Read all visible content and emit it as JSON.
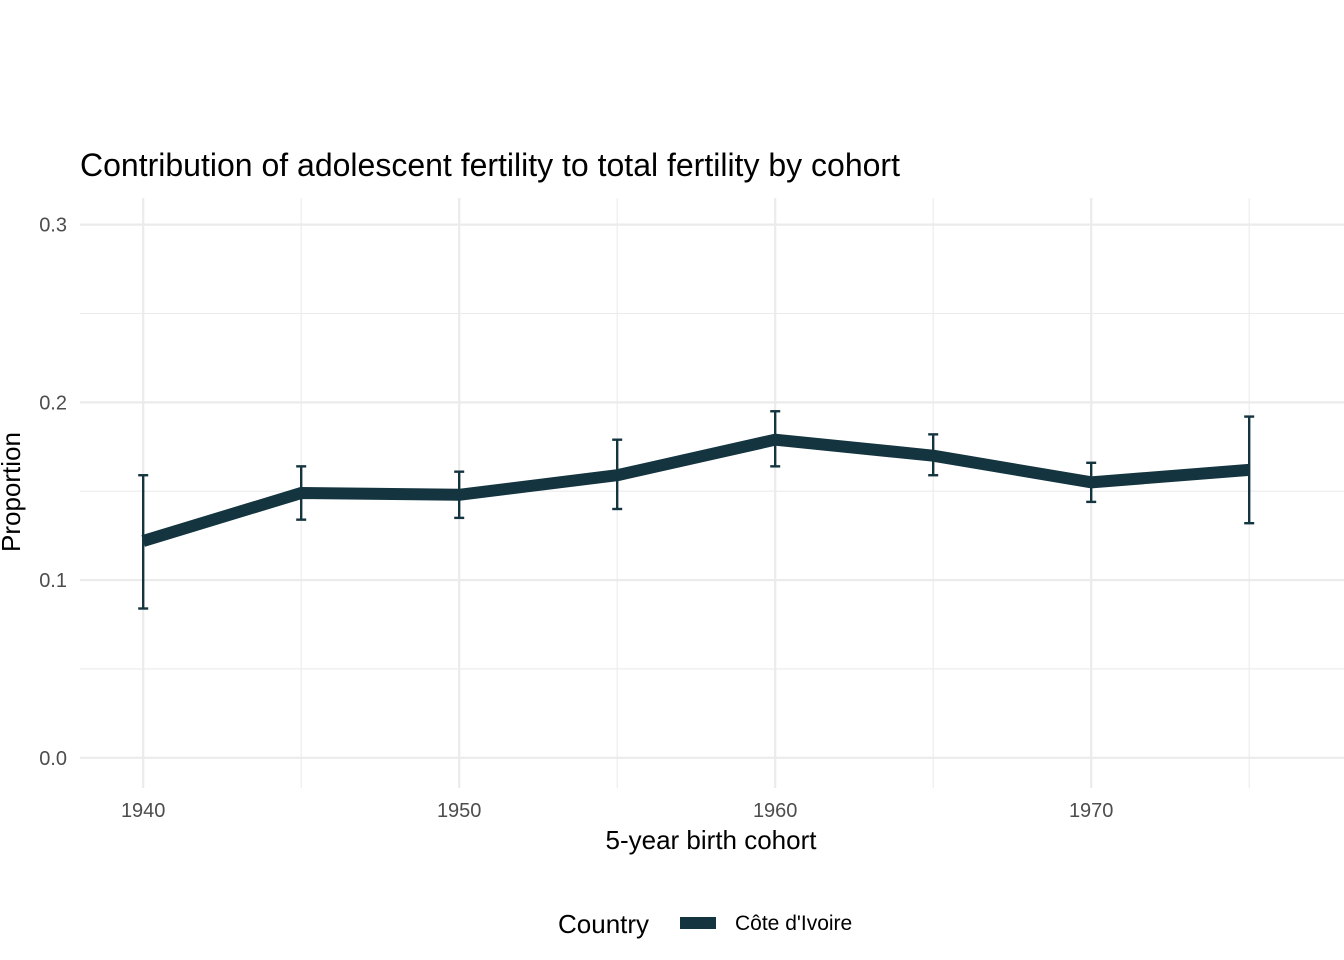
{
  "chart_data": {
    "type": "line",
    "title": "Contribution of adolescent fertility to total fertility by cohort",
    "xlabel": "5-year birth cohort",
    "ylabel": "Proportion",
    "xlim": [
      1938,
      1978
    ],
    "ylim": [
      -0.017,
      0.315
    ],
    "x_ticks": [
      1940,
      1950,
      1960,
      1970
    ],
    "x_tick_labels": [
      "1940",
      "1950",
      "1960",
      "1970"
    ],
    "x_minor_ticks": [
      1945,
      1955,
      1965,
      1975
    ],
    "y_ticks": [
      0.0,
      0.1,
      0.2,
      0.3
    ],
    "y_tick_labels": [
      "0.0",
      "0.1",
      "0.2",
      "0.3"
    ],
    "y_minor_ticks": [
      0.05,
      0.15,
      0.25
    ],
    "grid": true,
    "legend": {
      "title": "Country",
      "position": "bottom"
    },
    "series": [
      {
        "name": "Côte d'Ivoire",
        "color": "#14353f",
        "x": [
          1940,
          1945,
          1950,
          1955,
          1960,
          1965,
          1970,
          1975
        ],
        "y": [
          0.122,
          0.149,
          0.148,
          0.159,
          0.179,
          0.17,
          0.155,
          0.162
        ],
        "error_low": [
          0.084,
          0.134,
          0.135,
          0.14,
          0.164,
          0.159,
          0.144,
          0.132
        ],
        "error_high": [
          0.159,
          0.164,
          0.161,
          0.179,
          0.195,
          0.182,
          0.166,
          0.192
        ]
      }
    ]
  }
}
